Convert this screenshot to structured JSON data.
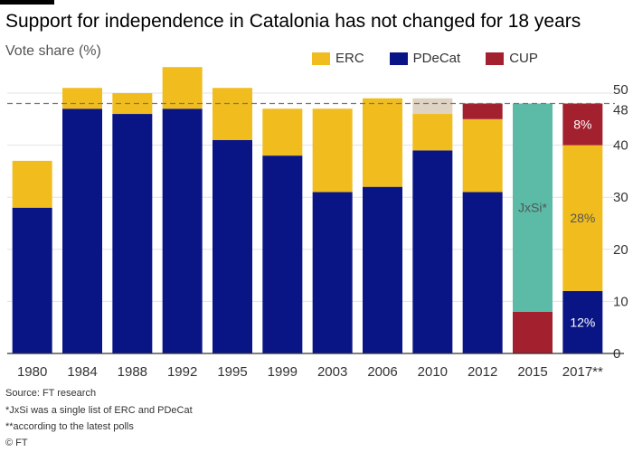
{
  "header": {
    "title": "Support for independence in Catalonia has not changed for 18 years",
    "subtitle": "Vote share (%)"
  },
  "legend": [
    {
      "label": "ERC",
      "color": "#f0bc1e"
    },
    {
      "label": "PDeCat",
      "color": "#0a1585"
    },
    {
      "label": "CUP",
      "color": "#a3202f"
    }
  ],
  "footer": {
    "source": "Source: FT research",
    "note1": "*JxSi was a single list of ERC and PDeCat",
    "note2": "**according to the latest polls",
    "copyright": "© FT"
  },
  "chart_data": {
    "type": "bar",
    "stacked": true,
    "categories": [
      "1980",
      "1984",
      "1988",
      "1992",
      "1995",
      "1999",
      "2003",
      "2006",
      "2010",
      "2012",
      "2015",
      "2017**"
    ],
    "series": [
      {
        "name": "PDeCat",
        "color": "#0a1585",
        "values": [
          28,
          47,
          46,
          47,
          41,
          38,
          31,
          32,
          39,
          31,
          0,
          12
        ]
      },
      {
        "name": "ERC",
        "color": "#f0bc1e",
        "values": [
          9,
          4,
          4,
          8,
          10,
          9,
          16,
          17,
          7,
          14,
          0,
          28
        ]
      },
      {
        "name": "CUP",
        "color": "#a3202f",
        "values": [
          0,
          0,
          0,
          0,
          0,
          0,
          0,
          0,
          0,
          3,
          8,
          8
        ]
      },
      {
        "name": "JxSi*",
        "color": "#5bbba6",
        "values": [
          0,
          0,
          0,
          0,
          0,
          0,
          0,
          0,
          0,
          0,
          40,
          0
        ]
      },
      {
        "name": "",
        "color": "#dfd3c3",
        "values": [
          0,
          0,
          0,
          0,
          0,
          0,
          0,
          0,
          3,
          0,
          0,
          0
        ]
      }
    ],
    "bar_labels": [
      {
        "category": "2015",
        "series": "JxSi*",
        "text": "JxSi*",
        "color": "#555555"
      },
      {
        "category": "2017**",
        "series": "ERC",
        "text": "28%",
        "color": "#555555"
      },
      {
        "category": "2017**",
        "series": "PDeCat",
        "text": "12%",
        "color": "#ffffff"
      },
      {
        "category": "2017**",
        "series": "CUP",
        "text": "8%",
        "color": "#ffffff"
      }
    ],
    "reference_line": {
      "value": 48,
      "label": "48",
      "style": "dashed"
    },
    "y_ticks": [
      0,
      10,
      20,
      30,
      40,
      50
    ],
    "ylim": [
      0,
      50
    ],
    "axis_side": "right",
    "grid": true
  }
}
